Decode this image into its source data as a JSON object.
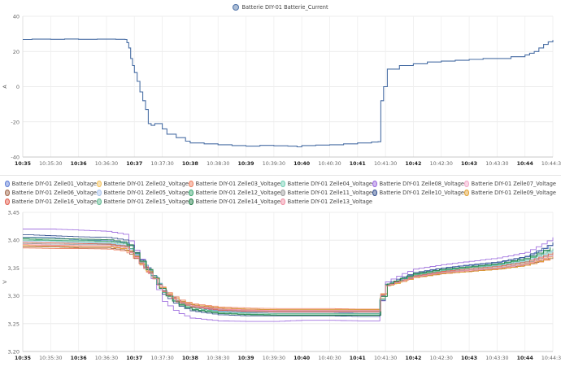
{
  "chart_data": [
    {
      "type": "line",
      "title": "",
      "xlabel": "",
      "ylabel": "A",
      "ylim": [
        -40,
        40
      ],
      "yticks": [
        40,
        20,
        0,
        -20,
        -40
      ],
      "xlim": [
        "10:35",
        "10:44:30"
      ],
      "xticks": [
        {
          "t": "10:35",
          "label": "10:35",
          "bold": true
        },
        {
          "t": "10:35:30",
          "label": "10:35:30",
          "bold": false
        },
        {
          "t": "10:36",
          "label": "10:36",
          "bold": true
        },
        {
          "t": "10:36:30",
          "label": "10:36:30",
          "bold": false
        },
        {
          "t": "10:37",
          "label": "10:37",
          "bold": true
        },
        {
          "t": "10:37:30",
          "label": "10:37:30",
          "bold": false
        },
        {
          "t": "10:38",
          "label": "10:38",
          "bold": true
        },
        {
          "t": "10:38:30",
          "label": "10:38:30",
          "bold": false
        },
        {
          "t": "10:39",
          "label": "10:39",
          "bold": true
        },
        {
          "t": "10:39:30",
          "label": "10:39:30",
          "bold": false
        },
        {
          "t": "10:40",
          "label": "10:40",
          "bold": true
        },
        {
          "t": "10:40:30",
          "label": "10:40:30",
          "bold": false
        },
        {
          "t": "10:41",
          "label": "10:41",
          "bold": true
        },
        {
          "t": "10:41:30",
          "label": "10:41:30",
          "bold": false
        },
        {
          "t": "10:42",
          "label": "10:42",
          "bold": true
        },
        {
          "t": "10:42:30",
          "label": "10:42:30",
          "bold": false
        },
        {
          "t": "10:43",
          "label": "10:43",
          "bold": true
        },
        {
          "t": "10:43:30",
          "label": "10:43:30",
          "bold": false
        },
        {
          "t": "10:44",
          "label": "10:44",
          "bold": true
        },
        {
          "t": "10:44:30",
          "label": "10:44:30",
          "bold": false
        }
      ],
      "grid": true,
      "legend_position": "top-center",
      "series": [
        {
          "name": "Batterie DIY-01 Batterie_Current",
          "color": "#4a6fa5",
          "step": true,
          "x": [
            "10:35",
            "10:35:10",
            "10:35:30",
            "10:35:45",
            "10:36",
            "10:36:20",
            "10:36:40",
            "10:36:50",
            "10:36:52",
            "10:36:54",
            "10:36:56",
            "10:36:58",
            "10:37",
            "10:37:03",
            "10:37:06",
            "10:37:09",
            "10:37:12",
            "10:37:15",
            "10:37:18",
            "10:37:22",
            "10:37:30",
            "10:37:35",
            "10:37:45",
            "10:37:55",
            "10:38",
            "10:38:15",
            "10:38:30",
            "10:38:45",
            "10:39",
            "10:39:15",
            "10:39:30",
            "10:39:45",
            "10:39:55",
            "10:40",
            "10:40:15",
            "10:40:30",
            "10:40:45",
            "10:41",
            "10:41:15",
            "10:41:22",
            "10:41:25",
            "10:41:28",
            "10:41:32",
            "10:41:45",
            "10:42",
            "10:42:15",
            "10:42:30",
            "10:42:45",
            "10:43",
            "10:43:15",
            "10:43:30",
            "10:43:45",
            "10:44",
            "10:44:05",
            "10:44:10",
            "10:44:15",
            "10:44:20",
            "10:44:25",
            "10:44:30"
          ],
          "y": [
            26.8,
            27.0,
            26.9,
            27.1,
            26.9,
            27.0,
            26.9,
            26.8,
            25,
            22,
            16,
            12,
            8,
            3,
            -3,
            -8,
            -13,
            -21,
            -22,
            -21,
            -24,
            -27,
            -29,
            -31,
            -32,
            -32.5,
            -33,
            -33.5,
            -33.8,
            -33.4,
            -33.6,
            -33.8,
            -34.2,
            -33.5,
            -33.2,
            -33,
            -32.5,
            -32,
            -31.5,
            -31.3,
            -8,
            0,
            10,
            12,
            13,
            14,
            14.5,
            15,
            15.5,
            16,
            16,
            17,
            18,
            19,
            20,
            22,
            24,
            25.5,
            26.5
          ]
        }
      ]
    },
    {
      "type": "line",
      "title": "",
      "xlabel": "",
      "ylabel": "V",
      "ylim": [
        3.2,
        3.45
      ],
      "yticks": [
        "3,45",
        "3,40",
        "3,35",
        "3,30",
        "3,25",
        "3,20"
      ],
      "xlim": [
        "10:35",
        "10:44:30"
      ],
      "xticks": [
        {
          "t": "10:35",
          "label": "10:35",
          "bold": true
        },
        {
          "t": "10:35:30",
          "label": "10:35:30",
          "bold": false
        },
        {
          "t": "10:36",
          "label": "10:36",
          "bold": true
        },
        {
          "t": "10:36:30",
          "label": "10:36:30",
          "bold": false
        },
        {
          "t": "10:37",
          "label": "10:37",
          "bold": true
        },
        {
          "t": "10:37:30",
          "label": "10:37:30",
          "bold": false
        },
        {
          "t": "10:38",
          "label": "10:38",
          "bold": true
        },
        {
          "t": "10:38:30",
          "label": "10:38:30",
          "bold": false
        },
        {
          "t": "10:39",
          "label": "10:39",
          "bold": true
        },
        {
          "t": "10:39:30",
          "label": "10:39:30",
          "bold": false
        },
        {
          "t": "10:40",
          "label": "10:40",
          "bold": true
        },
        {
          "t": "10:40:30",
          "label": "10:40:30",
          "bold": false
        },
        {
          "t": "10:41",
          "label": "10:41",
          "bold": true
        },
        {
          "t": "10:41:30",
          "label": "10:41:30",
          "bold": false
        },
        {
          "t": "10:42",
          "label": "10:42",
          "bold": true
        },
        {
          "t": "10:42:30",
          "label": "10:42:30",
          "bold": false
        },
        {
          "t": "10:43",
          "label": "10:43",
          "bold": true
        },
        {
          "t": "10:43:30",
          "label": "10:43:30",
          "bold": false
        },
        {
          "t": "10:44",
          "label": "10:44",
          "bold": true
        },
        {
          "t": "10:44:30",
          "label": "10:44:30",
          "bold": false
        }
      ],
      "grid": true,
      "legend_position": "top",
      "x": [
        "10:35",
        "10:35:30",
        "10:36",
        "10:36:30",
        "10:36:50",
        "10:37",
        "10:37:10",
        "10:37:20",
        "10:37:30",
        "10:37:45",
        "10:38",
        "10:38:30",
        "10:39",
        "10:39:30",
        "10:40",
        "10:40:30",
        "10:41",
        "10:41:20",
        "10:41:25",
        "10:41:30",
        "10:41:45",
        "10:42",
        "10:42:30",
        "10:43",
        "10:43:30",
        "10:44",
        "10:44:20",
        "10:44:30"
      ],
      "series": [
        {
          "name": "Batterie DIY-01 Zelle01_Voltage",
          "color": "#5b7bd5",
          "y": [
            3.405,
            3.405,
            3.4,
            3.4,
            3.395,
            3.375,
            3.355,
            3.335,
            3.31,
            3.29,
            3.28,
            3.272,
            3.27,
            3.27,
            3.27,
            3.27,
            3.268,
            3.268,
            3.3,
            3.32,
            3.33,
            3.34,
            3.35,
            3.355,
            3.36,
            3.37,
            3.385,
            3.395
          ]
        },
        {
          "name": "Batterie DIY-01 Zelle02_Voltage",
          "color": "#f4c15a",
          "y": [
            3.392,
            3.39,
            3.39,
            3.39,
            3.385,
            3.37,
            3.35,
            3.33,
            3.306,
            3.29,
            3.282,
            3.276,
            3.274,
            3.272,
            3.272,
            3.272,
            3.272,
            3.272,
            3.302,
            3.318,
            3.326,
            3.334,
            3.342,
            3.346,
            3.35,
            3.358,
            3.368,
            3.372
          ]
        },
        {
          "name": "Batterie DIY-01 Zelle03_Voltage",
          "color": "#ef7f5e",
          "y": [
            3.386,
            3.385,
            3.385,
            3.384,
            3.38,
            3.366,
            3.348,
            3.33,
            3.31,
            3.294,
            3.286,
            3.28,
            3.278,
            3.277,
            3.277,
            3.277,
            3.276,
            3.276,
            3.304,
            3.318,
            3.326,
            3.333,
            3.34,
            3.344,
            3.348,
            3.355,
            3.364,
            3.368
          ]
        },
        {
          "name": "Batterie DIY-01 Zelle04_Voltage",
          "color": "#6fcfb3",
          "y": [
            3.396,
            3.395,
            3.395,
            3.394,
            3.39,
            3.372,
            3.352,
            3.332,
            3.308,
            3.29,
            3.281,
            3.274,
            3.272,
            3.271,
            3.271,
            3.271,
            3.27,
            3.27,
            3.301,
            3.319,
            3.328,
            3.337,
            3.345,
            3.35,
            3.354,
            3.362,
            3.374,
            3.38
          ]
        },
        {
          "name": "Batterie DIY-01 Zelle08_Voltage",
          "color": "#9966dd",
          "y": [
            3.42,
            3.42,
            3.418,
            3.416,
            3.41,
            3.382,
            3.355,
            3.325,
            3.29,
            3.27,
            3.26,
            3.255,
            3.254,
            3.254,
            3.256,
            3.256,
            3.255,
            3.255,
            3.3,
            3.325,
            3.338,
            3.348,
            3.356,
            3.362,
            3.368,
            3.378,
            3.395,
            3.405
          ]
        },
        {
          "name": "Batterie DIY-01 Zelle07_Voltage",
          "color": "#f2a6c8",
          "y": [
            3.39,
            3.39,
            3.388,
            3.388,
            3.384,
            3.368,
            3.35,
            3.33,
            3.308,
            3.291,
            3.283,
            3.277,
            3.275,
            3.274,
            3.274,
            3.274,
            3.274,
            3.274,
            3.303,
            3.318,
            3.326,
            3.334,
            3.341,
            3.345,
            3.349,
            3.356,
            3.366,
            3.37
          ]
        },
        {
          "name": "Batterie DIY-01 Zelle06_Voltage",
          "color": "#a0664a",
          "y": [
            3.388,
            3.388,
            3.386,
            3.386,
            3.382,
            3.367,
            3.349,
            3.331,
            3.309,
            3.292,
            3.284,
            3.278,
            3.276,
            3.275,
            3.275,
            3.275,
            3.275,
            3.275,
            3.303,
            3.318,
            3.326,
            3.333,
            3.34,
            3.344,
            3.348,
            3.355,
            3.365,
            3.369
          ]
        },
        {
          "name": "Batterie DIY-01 Zelle05_Voltage",
          "color": "#a9c4ee",
          "y": [
            3.398,
            3.398,
            3.396,
            3.395,
            3.391,
            3.372,
            3.352,
            3.332,
            3.307,
            3.289,
            3.28,
            3.273,
            3.271,
            3.27,
            3.27,
            3.27,
            3.27,
            3.27,
            3.301,
            3.32,
            3.329,
            3.338,
            3.346,
            3.351,
            3.355,
            3.364,
            3.376,
            3.383
          ]
        },
        {
          "name": "Batterie DIY-01 Zelle12_Voltage",
          "color": "#3aa56f",
          "y": [
            3.402,
            3.4,
            3.4,
            3.398,
            3.394,
            3.374,
            3.353,
            3.332,
            3.305,
            3.286,
            3.276,
            3.269,
            3.267,
            3.266,
            3.266,
            3.266,
            3.266,
            3.266,
            3.299,
            3.32,
            3.33,
            3.339,
            3.347,
            3.352,
            3.357,
            3.366,
            3.38,
            3.388
          ]
        },
        {
          "name": "Batterie DIY-01 Zelle11_Voltage",
          "color": "#9a9a9a",
          "y": [
            3.394,
            3.393,
            3.392,
            3.392,
            3.388,
            3.37,
            3.351,
            3.331,
            3.308,
            3.29,
            3.281,
            3.275,
            3.273,
            3.272,
            3.272,
            3.272,
            3.272,
            3.272,
            3.302,
            3.319,
            3.327,
            3.335,
            3.343,
            3.347,
            3.351,
            3.359,
            3.37,
            3.375
          ]
        },
        {
          "name": "Batterie DIY-01 Zelle10_Voltage",
          "color": "#2c4a8a",
          "y": [
            3.41,
            3.408,
            3.406,
            3.405,
            3.4,
            3.378,
            3.355,
            3.332,
            3.303,
            3.283,
            3.273,
            3.266,
            3.264,
            3.264,
            3.264,
            3.264,
            3.263,
            3.263,
            3.299,
            3.321,
            3.332,
            3.342,
            3.35,
            3.356,
            3.361,
            3.371,
            3.387,
            3.396
          ]
        },
        {
          "name": "Batterie DIY-01 Zelle09_Voltage",
          "color": "#e0a030",
          "y": [
            3.39,
            3.389,
            3.388,
            3.388,
            3.384,
            3.368,
            3.35,
            3.331,
            3.308,
            3.292,
            3.284,
            3.278,
            3.276,
            3.275,
            3.275,
            3.275,
            3.275,
            3.275,
            3.303,
            3.318,
            3.325,
            3.333,
            3.34,
            3.344,
            3.348,
            3.355,
            3.365,
            3.369
          ]
        },
        {
          "name": "Batterie DIY-01 Zelle16_Voltage",
          "color": "#e25a4a",
          "y": [
            3.396,
            3.395,
            3.394,
            3.393,
            3.389,
            3.371,
            3.352,
            3.332,
            3.307,
            3.289,
            3.28,
            3.274,
            3.272,
            3.271,
            3.271,
            3.271,
            3.271,
            3.271,
            3.301,
            3.319,
            3.328,
            3.336,
            3.344,
            3.349,
            3.353,
            3.361,
            3.372,
            3.378
          ]
        },
        {
          "name": "Batterie DIY-01 Zelle15_Voltage",
          "color": "#5bb88e",
          "y": [
            3.4,
            3.399,
            3.398,
            3.397,
            3.393,
            3.373,
            3.353,
            3.332,
            3.306,
            3.287,
            3.278,
            3.271,
            3.269,
            3.268,
            3.268,
            3.268,
            3.268,
            3.268,
            3.3,
            3.32,
            3.329,
            3.338,
            3.346,
            3.351,
            3.356,
            3.365,
            3.378,
            3.385
          ]
        },
        {
          "name": "Batterie DIY-01 Zelle14_Voltage",
          "color": "#1f7a45",
          "y": [
            3.404,
            3.403,
            3.402,
            3.401,
            3.396,
            3.375,
            3.354,
            3.332,
            3.305,
            3.285,
            3.275,
            3.268,
            3.266,
            3.265,
            3.265,
            3.265,
            3.265,
            3.265,
            3.299,
            3.32,
            3.331,
            3.34,
            3.348,
            3.353,
            3.358,
            3.368,
            3.382,
            3.39
          ]
        },
        {
          "name": "Batterie DIY-01 Zelle13_Voltage",
          "color": "#f08aa0",
          "y": [
            3.392,
            3.391,
            3.39,
            3.39,
            3.386,
            3.369,
            3.35,
            3.331,
            3.308,
            3.291,
            3.282,
            3.276,
            3.274,
            3.273,
            3.273,
            3.273,
            3.273,
            3.273,
            3.302,
            3.318,
            3.326,
            3.334,
            3.342,
            3.346,
            3.35,
            3.357,
            3.368,
            3.373
          ]
        }
      ]
    }
  ]
}
